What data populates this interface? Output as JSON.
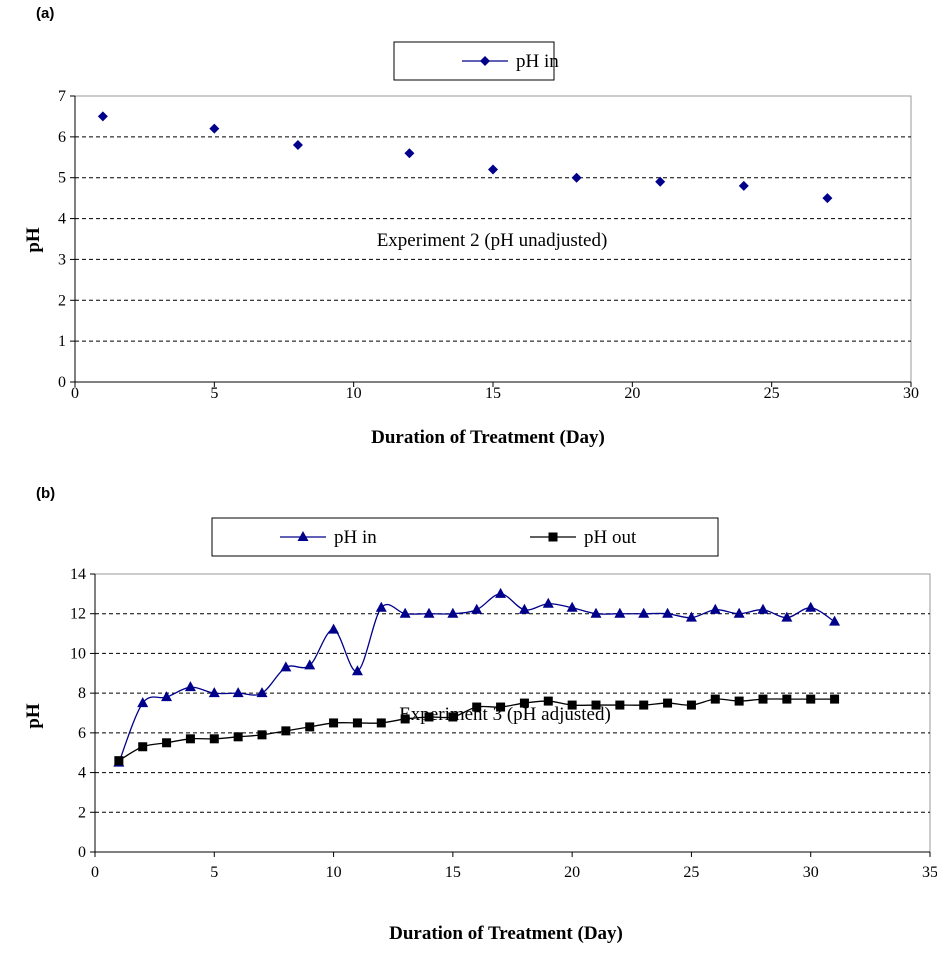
{
  "chart_data": [
    {
      "type": "scatter",
      "panel_label": "(a)",
      "title": "",
      "xlabel": "Duration of Treatment (Day)",
      "ylabel": "pH",
      "xlim": [
        0,
        30
      ],
      "ylim": [
        0,
        7
      ],
      "xticks": [
        0,
        5,
        10,
        15,
        20,
        25,
        30
      ],
      "yticks": [
        0,
        1,
        2,
        3,
        4,
        5,
        6,
        7
      ],
      "grid": "horizontal dashed",
      "legend_position": "top-center",
      "annotation": "Experiment 2 (pH unadjusted)",
      "series": [
        {
          "name": "pH in",
          "marker": "diamond",
          "color": "#00008B",
          "x": [
            1,
            5,
            8,
            12,
            15,
            18,
            21,
            24,
            27
          ],
          "y": [
            6.5,
            6.2,
            5.8,
            5.6,
            5.2,
            5.0,
            4.9,
            4.8,
            4.5
          ]
        }
      ]
    },
    {
      "type": "line",
      "panel_label": "(b)",
      "title": "",
      "xlabel": "Duration of Treatment (Day)",
      "ylabel": "pH",
      "xlim": [
        0,
        35
      ],
      "ylim": [
        0,
        14
      ],
      "xticks": [
        0,
        5,
        10,
        15,
        20,
        25,
        30,
        35
      ],
      "yticks": [
        0,
        2,
        4,
        6,
        8,
        10,
        12,
        14
      ],
      "grid": "horizontal dashed",
      "legend_position": "top-center",
      "annotation": "Experiment 3 (pH adjusted)",
      "series": [
        {
          "name": "pH in",
          "marker": "triangle",
          "color": "#00008B",
          "x": [
            1,
            2,
            3,
            4,
            5,
            6,
            7,
            8,
            9,
            10,
            11,
            12,
            13,
            14,
            15,
            16,
            17,
            18,
            19,
            20,
            21,
            22,
            23,
            24,
            25,
            26,
            27,
            28,
            29,
            30,
            31
          ],
          "y": [
            4.5,
            7.5,
            7.8,
            8.3,
            8.0,
            8.0,
            8.0,
            9.3,
            9.4,
            11.2,
            9.1,
            12.3,
            12.0,
            12.0,
            12.0,
            12.2,
            13.0,
            12.2,
            12.5,
            12.3,
            12.0,
            12.0,
            12.0,
            12.0,
            11.8,
            12.2,
            12.0,
            12.2,
            11.8,
            12.3,
            11.6
          ]
        },
        {
          "name": "pH out",
          "marker": "square",
          "color": "#000000",
          "x": [
            1,
            2,
            3,
            4,
            5,
            6,
            7,
            8,
            9,
            10,
            11,
            12,
            13,
            14,
            15,
            16,
            17,
            18,
            19,
            20,
            21,
            22,
            23,
            24,
            25,
            26,
            27,
            28,
            29,
            30,
            31
          ],
          "y": [
            4.6,
            5.3,
            5.5,
            5.7,
            5.7,
            5.8,
            5.9,
            6.1,
            6.3,
            6.5,
            6.5,
            6.5,
            6.7,
            6.8,
            6.8,
            7.3,
            7.3,
            7.5,
            7.6,
            7.4,
            7.4,
            7.4,
            7.4,
            7.5,
            7.4,
            7.7,
            7.6,
            7.7,
            7.7,
            7.7,
            7.7
          ]
        }
      ]
    }
  ]
}
